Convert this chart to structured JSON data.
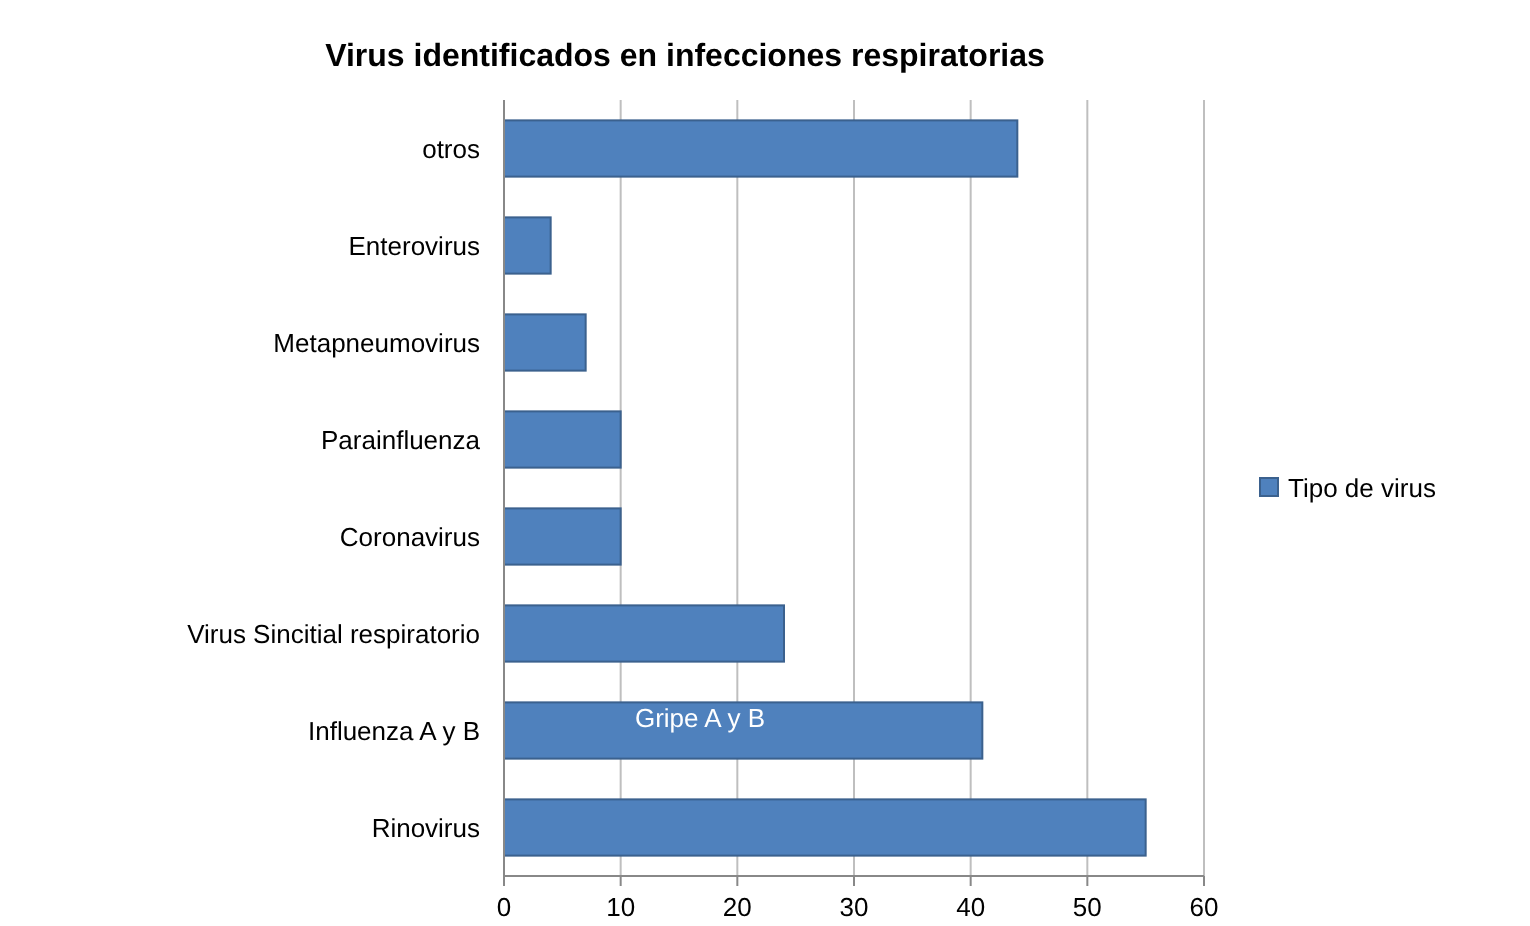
{
  "chart_data": {
    "type": "bar",
    "orientation": "horizontal",
    "title": "Virus identificados en infecciones respiratorias",
    "categories": [
      "otros",
      "Enterovirus",
      "Metapneumovirus",
      "Parainfluenza",
      "Coronavirus",
      "Virus Sincitial respiratorio",
      "Influenza A y B",
      "Rinovirus"
    ],
    "series": [
      {
        "name": "Tipo de virus",
        "color": "#4f81bd",
        "values": [
          44,
          4,
          7,
          10,
          10,
          24,
          41,
          55
        ]
      }
    ],
    "xlim": [
      0,
      60
    ],
    "xticks": [
      0,
      10,
      20,
      30,
      40,
      50,
      60
    ],
    "grid": "x",
    "legend": "right",
    "annotations": [
      "Gripe A y B"
    ]
  }
}
